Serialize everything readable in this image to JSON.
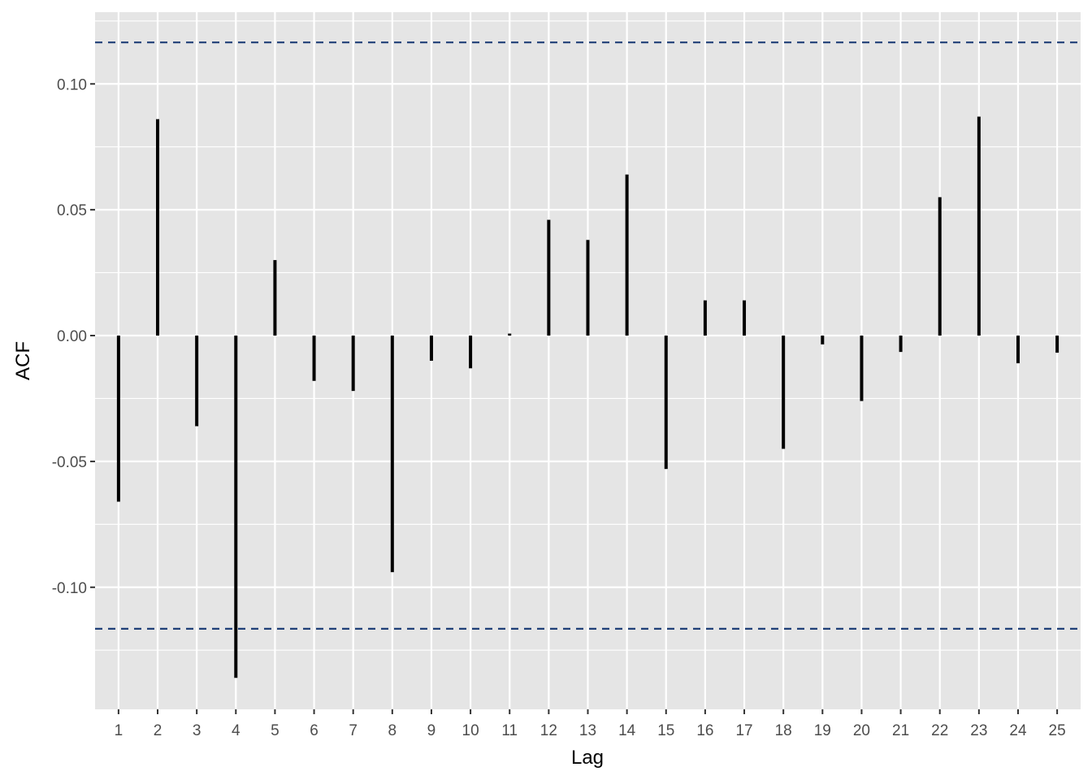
{
  "chart_data": {
    "type": "bar",
    "subtype": "acf-lollipop",
    "title": "",
    "xlabel": "Lag",
    "ylabel": "ACF",
    "x": [
      1,
      2,
      3,
      4,
      5,
      6,
      7,
      8,
      9,
      10,
      11,
      12,
      13,
      14,
      15,
      16,
      17,
      18,
      19,
      20,
      21,
      22,
      23,
      24,
      25
    ],
    "values": [
      -0.066,
      0.086,
      -0.036,
      -0.136,
      0.03,
      -0.018,
      -0.022,
      -0.094,
      -0.01,
      -0.013,
      0.0008,
      0.046,
      0.038,
      0.064,
      -0.053,
      0.014,
      0.014,
      -0.045,
      -0.0035,
      -0.026,
      -0.0065,
      0.055,
      0.087,
      -0.011,
      -0.0068
    ],
    "ylim": [
      -0.1485,
      0.1285
    ],
    "xlim": [
      0.4,
      25.6
    ],
    "yticks": [
      -0.1,
      -0.05,
      0.0,
      0.05,
      0.1
    ],
    "ytick_labels": [
      "-0.10",
      "-0.05",
      "0.00",
      "0.05",
      "0.10"
    ],
    "xtick_labels": [
      "1",
      "2",
      "3",
      "4",
      "5",
      "6",
      "7",
      "8",
      "9",
      "10",
      "11",
      "12",
      "13",
      "14",
      "15",
      "16",
      "17",
      "18",
      "19",
      "20",
      "21",
      "22",
      "23",
      "24",
      "25"
    ],
    "confidence_bounds": [
      0.1165,
      -0.1165
    ],
    "grid": true,
    "colors": {
      "panel_background": "#e5e5e5",
      "grid": "#ffffff",
      "bars": "#000000",
      "confidence_line": "#1f3f77"
    }
  }
}
